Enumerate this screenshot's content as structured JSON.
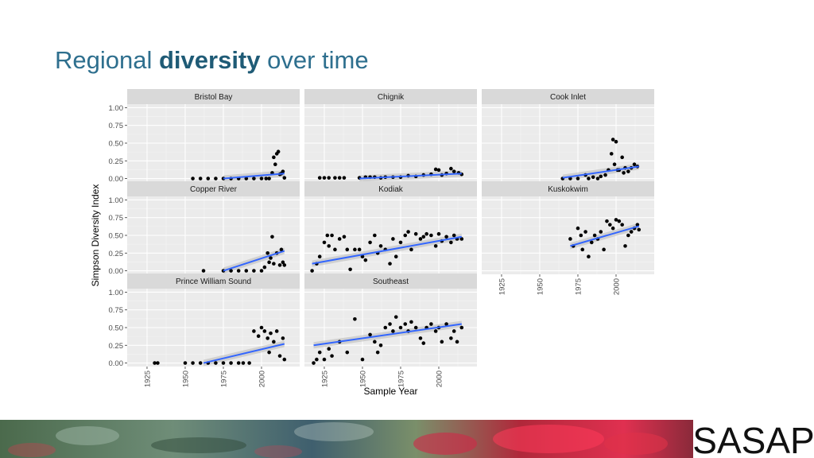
{
  "slide": {
    "title_regular_1": "Regional ",
    "title_bold": "diversity",
    "title_regular_2": " over time",
    "logo_text": "SASAP"
  },
  "colors": {
    "title": "#2e6f8e",
    "panel_bg": "#ebebeb",
    "strip_bg": "#d9d9d9",
    "grid": "#ffffff",
    "point": "#000000",
    "trend": "#3366ff",
    "ribbon": "#bdbdbd"
  },
  "chart_data": {
    "type": "scatter",
    "facet_layout": "3 columns, shared axes, smooth linear trend with confidence band",
    "xlabel": "Sample Year",
    "ylabel": "Simpson Diversity Index",
    "xlim": [
      1912,
      2025
    ],
    "ylim": [
      -0.05,
      1.05
    ],
    "xticks": [
      1925,
      1950,
      1975,
      2000
    ],
    "yticks": [
      0.0,
      0.25,
      0.5,
      0.75,
      1.0
    ],
    "ytick_labels": [
      "0.00",
      "0.25",
      "0.50",
      "0.75",
      "1.00"
    ],
    "panels": [
      {
        "name": "Bristol Bay",
        "x": [
          1955,
          1960,
          1965,
          1970,
          1975,
          1980,
          1985,
          1990,
          1995,
          2000,
          2003,
          2005,
          2007,
          2008,
          2009,
          2010,
          2011,
          2012,
          2013,
          2014,
          2015
        ],
        "y": [
          0,
          0,
          0,
          0,
          0,
          0,
          0,
          0,
          0,
          0,
          0,
          0,
          0.08,
          0.3,
          0.2,
          0.35,
          0.38,
          0.06,
          0.07,
          0.1,
          0.01
        ],
        "trend": [
          [
            1975,
            0.0
          ],
          [
            2015,
            0.07
          ]
        ]
      },
      {
        "name": "Chignik",
        "x": [
          1922,
          1925,
          1928,
          1932,
          1935,
          1938,
          1948,
          1952,
          1955,
          1958,
          1962,
          1965,
          1970,
          1975,
          1980,
          1985,
          1990,
          1995,
          1998,
          2000,
          2002,
          2005,
          2008,
          2010,
          2013,
          2015
        ],
        "y": [
          0.01,
          0.01,
          0.01,
          0.01,
          0.01,
          0.01,
          0.01,
          0.02,
          0.02,
          0.02,
          0.01,
          0.02,
          0.02,
          0.02,
          0.04,
          0.03,
          0.05,
          0.06,
          0.13,
          0.12,
          0.05,
          0.07,
          0.14,
          0.1,
          0.08,
          0.06
        ],
        "trend": [
          [
            1948,
            0.0
          ],
          [
            2015,
            0.07
          ]
        ]
      },
      {
        "name": "Cook Inlet",
        "x": [
          1965,
          1970,
          1975,
          1980,
          1982,
          1985,
          1988,
          1990,
          1993,
          1995,
          1997,
          1998,
          1999,
          2000,
          2001,
          2002,
          2004,
          2005,
          2006,
          2008,
          2010,
          2012,
          2014
        ],
        "y": [
          0,
          0,
          0,
          0.05,
          0,
          0.02,
          0,
          0.03,
          0.05,
          0.12,
          0.35,
          0.55,
          0.2,
          0.52,
          0.12,
          0.12,
          0.3,
          0.08,
          0.15,
          0.1,
          0.15,
          0.2,
          0.17
        ],
        "trend": [
          [
            1965,
            0.01
          ],
          [
            2015,
            0.17
          ]
        ]
      },
      {
        "name": "Copper River",
        "x": [
          1962,
          1975,
          1980,
          1985,
          1990,
          1995,
          2000,
          2002,
          2004,
          2005,
          2006,
          2007,
          2008,
          2010,
          2012,
          2013,
          2014,
          2015
        ],
        "y": [
          0,
          0,
          0,
          0,
          0,
          0,
          0,
          0.05,
          0.25,
          0.12,
          0.18,
          0.48,
          0.1,
          0.25,
          0.08,
          0.3,
          0.12,
          0.08
        ],
        "trend": [
          [
            1975,
            0.0
          ],
          [
            2015,
            0.28
          ]
        ]
      },
      {
        "name": "Kodiak",
        "x": [
          1917,
          1920,
          1922,
          1925,
          1927,
          1928,
          1930,
          1932,
          1935,
          1938,
          1940,
          1942,
          1945,
          1948,
          1950,
          1952,
          1955,
          1958,
          1960,
          1962,
          1965,
          1968,
          1970,
          1972,
          1975,
          1978,
          1980,
          1982,
          1985,
          1988,
          1990,
          1992,
          1995,
          1998,
          2000,
          2002,
          2005,
          2008,
          2010,
          2012,
          2015
        ],
        "y": [
          0,
          0.1,
          0.2,
          0.4,
          0.5,
          0.35,
          0.5,
          0.3,
          0.45,
          0.48,
          0.3,
          0.02,
          0.3,
          0.3,
          0.2,
          0.15,
          0.4,
          0.5,
          0.25,
          0.35,
          0.3,
          0.1,
          0.45,
          0.2,
          0.4,
          0.5,
          0.55,
          0.3,
          0.52,
          0.45,
          0.48,
          0.52,
          0.5,
          0.35,
          0.52,
          0.42,
          0.48,
          0.4,
          0.5,
          0.45,
          0.45
        ],
        "trend": [
          [
            1917,
            0.1
          ],
          [
            2015,
            0.48
          ]
        ]
      },
      {
        "name": "Kuskokwim",
        "x": [
          1970,
          1972,
          1975,
          1977,
          1978,
          1980,
          1982,
          1984,
          1986,
          1988,
          1990,
          1992,
          1994,
          1996,
          1998,
          2000,
          2002,
          2004,
          2006,
          2008,
          2010,
          2012,
          2014,
          2015
        ],
        "y": [
          0.45,
          0.35,
          0.6,
          0.5,
          0.3,
          0.55,
          0.2,
          0.4,
          0.5,
          0.45,
          0.55,
          0.3,
          0.7,
          0.65,
          0.6,
          0.72,
          0.7,
          0.65,
          0.35,
          0.5,
          0.55,
          0.6,
          0.65,
          0.58
        ],
        "trend": [
          [
            1970,
            0.35
          ],
          [
            2015,
            0.63
          ]
        ]
      },
      {
        "name": "Prince William Sound",
        "x": [
          1930,
          1932,
          1950,
          1955,
          1960,
          1965,
          1970,
          1975,
          1980,
          1985,
          1988,
          1992,
          1995,
          1998,
          2000,
          2002,
          2004,
          2005,
          2006,
          2008,
          2010,
          2012,
          2014,
          2015
        ],
        "y": [
          0,
          0,
          0,
          0,
          0,
          0,
          0,
          0,
          0,
          0,
          0,
          0,
          0.45,
          0.38,
          0.5,
          0.45,
          0.35,
          0.15,
          0.42,
          0.3,
          0.45,
          0.1,
          0.35,
          0.05
        ],
        "trend": [
          [
            1962,
            0.0
          ],
          [
            2015,
            0.27
          ]
        ]
      },
      {
        "name": "Southeast",
        "x": [
          1918,
          1920,
          1922,
          1925,
          1928,
          1930,
          1935,
          1940,
          1945,
          1950,
          1955,
          1958,
          1960,
          1962,
          1965,
          1968,
          1970,
          1972,
          1975,
          1978,
          1980,
          1982,
          1985,
          1988,
          1990,
          1992,
          1995,
          1998,
          2000,
          2002,
          2005,
          2008,
          2010,
          2012,
          2015
        ],
        "y": [
          0,
          0.05,
          0.15,
          0.05,
          0.2,
          0.1,
          0.3,
          0.15,
          0.62,
          0.05,
          0.4,
          0.3,
          0.15,
          0.25,
          0.5,
          0.55,
          0.45,
          0.65,
          0.5,
          0.55,
          0.45,
          0.58,
          0.5,
          0.35,
          0.28,
          0.5,
          0.55,
          0.45,
          0.5,
          0.3,
          0.55,
          0.35,
          0.45,
          0.3,
          0.5
        ],
        "trend": [
          [
            1918,
            0.25
          ],
          [
            2015,
            0.55
          ]
        ]
      }
    ]
  }
}
